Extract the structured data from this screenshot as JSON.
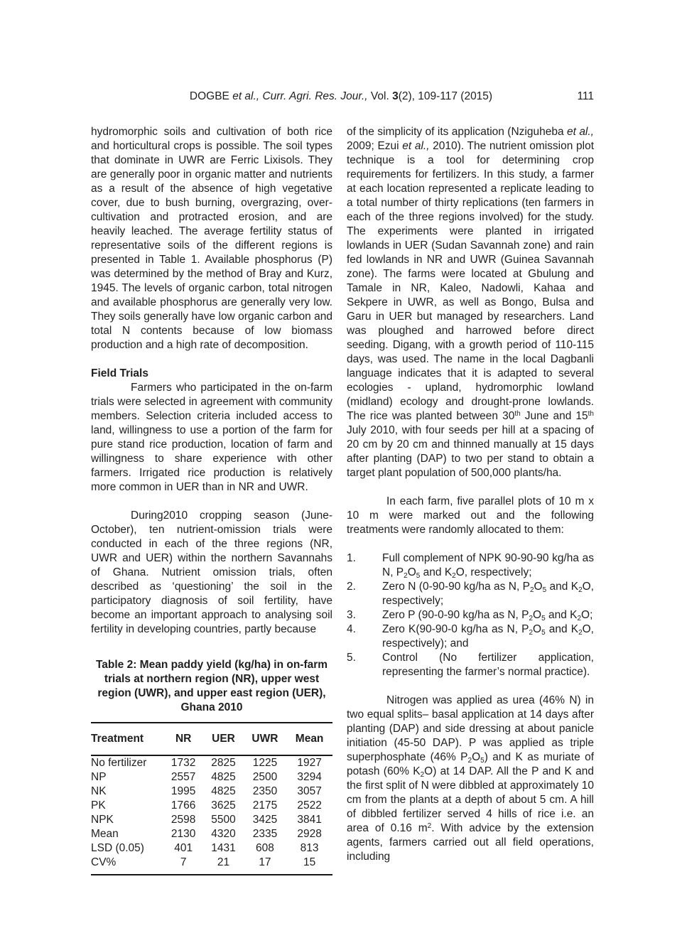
{
  "header": {
    "citation": [
      {
        "t": "DOGBE "
      },
      {
        "t": "et al.,",
        "s": "i"
      },
      {
        "t": " "
      },
      {
        "t": "Curr. Agri. Res. Jour.,",
        "s": "i"
      },
      {
        "t": " Vol. "
      },
      {
        "t": "3",
        "s": "b"
      },
      {
        "t": "(2), 109-117 (2015)"
      }
    ],
    "page_number": "111"
  },
  "left_column": {
    "p1": "hydromorphic soils and cultivation of both rice and horticultural crops is possible. The soil types that dominate in UWR are Ferric Lixisols. They are generally poor in organic matter and nutrients as a result of the absence of high vegetative cover, due to bush burning, overgrazing, over-cultivation and protracted erosion, and are heavily leached. The average fertility status of representative soils of the different regions is presented in Table 1. Available phosphorus (P) was determined by the method of Bray and Kurz, 1945. The levels of organic carbon, total nitrogen and available phosphorus are generally very low. They soils generally have low organic carbon and total N contents because of low biomass production and a high rate of decomposition.",
    "section_heading": "Field Trials",
    "p2": "Farmers who participated in the on-farm trials were selected in agreement with community members. Selection criteria included access to land, willingness to use a portion of the farm for pure stand rice production, location of farm and willingness to share experience with other farmers. Irrigated rice production is relatively more common in UER than in NR and UWR.",
    "p3": "During2010 cropping season (June-October), ten nutrient-omission trials were conducted in each of the three regions (NR, UWR and UER) within the northern Savannahs of Ghana. Nutrient omission trials, often described as ‘questioning’ the soil in the participatory diagnosis of soil fertility, have become an important approach to analysing soil fertility in developing countries, partly because"
  },
  "table": {
    "caption": "Table 2: Mean paddy yield (kg/ha) in on-farm trials at northern region (NR), upper west region (UWR), and upper east region (UER), Ghana 2010",
    "headers": [
      "Treatment",
      "NR",
      "UER",
      "UWR",
      "Mean"
    ],
    "rows": [
      [
        "No fertilizer",
        "1732",
        "2825",
        "1225",
        "1927"
      ],
      [
        "NP",
        "2557",
        "4825",
        "2500",
        "3294"
      ],
      [
        "NK",
        "1995",
        "4825",
        "2350",
        "3057"
      ],
      [
        "PK",
        "1766",
        "3625",
        "2175",
        "2522"
      ],
      [
        "NPK",
        "2598",
        "5500",
        "3425",
        "3841"
      ],
      [
        "Mean",
        "2130",
        "4320",
        "2335",
        "2928"
      ],
      [
        "LSD (0.05)",
        "401",
        "1431",
        "608",
        "813"
      ],
      [
        "CV%",
        "7",
        "21",
        "17",
        "15"
      ]
    ]
  },
  "right_column": {
    "p1": [
      {
        "t": "of the simplicity of its application (Nziguheba "
      },
      {
        "t": "et al.,",
        "s": "i"
      },
      {
        "t": " 2009; Ezui "
      },
      {
        "t": "et al.,",
        "s": "i"
      },
      {
        "t": " 2010). The nutrient omission plot technique is a tool for determining crop requirements for fertilizers. In this study, a farmer at each location represented a replicate leading to a total number of thirty replications (ten farmers in each of the three regions involved) for the study. The experiments were planted in irrigated lowlands in UER (Sudan Savannah zone) and rain fed lowlands in NR and UWR (Guinea Savannah zone). The farms were located at Gbulung and Tamale in NR, Kaleo, Nadowli, Kahaa and Sekpere in UWR, as well as Bongo, Bulsa and Garu in UER but managed by researchers. Land was ploughed and harrowed before direct seeding. Digang, with a growth period of 110-115 days, was used. The name in the local Dagbanli language indicates that it is adapted to several ecologies - upland, hydromorphic lowland (midland) ecology and drought-prone lowlands. The rice was planted between 30"
      },
      {
        "t": "th",
        "s": "sup"
      },
      {
        "t": " June and 15"
      },
      {
        "t": "th",
        "s": "sup"
      },
      {
        "t": " July 2010, with four seeds per hill at a spacing of 20 cm by 20 cm and thinned manually at 15 days after planting (DAP) to two per stand to obtain a target plant population of 500,000 plants/ha."
      }
    ],
    "p2": "In each farm, five parallel plots of 10 m x 10 m were marked out and the following treatments were randomly allocated to them:",
    "list": [
      {
        "n": "1.",
        "segs": [
          {
            "t": "Full complement of NPK 90-90-90 kg/ha as N, P"
          },
          {
            "t": "2",
            "s": "sub"
          },
          {
            "t": "O"
          },
          {
            "t": "5",
            "s": "sub"
          },
          {
            "t": " and K"
          },
          {
            "t": "2",
            "s": "sub"
          },
          {
            "t": "O, respectively;"
          }
        ]
      },
      {
        "n": "2.",
        "segs": [
          {
            "t": "Zero N (0-90-90 kg/ha as N, P"
          },
          {
            "t": "2",
            "s": "sub"
          },
          {
            "t": "O"
          },
          {
            "t": "5",
            "s": "sub"
          },
          {
            "t": " and K"
          },
          {
            "t": "2",
            "s": "sub"
          },
          {
            "t": "O, respectively;"
          }
        ]
      },
      {
        "n": "3.",
        "segs": [
          {
            "t": "Zero P (90-0-90 kg/ha as N, P"
          },
          {
            "t": "2",
            "s": "sub"
          },
          {
            "t": "O"
          },
          {
            "t": "5",
            "s": "sub"
          },
          {
            "t": " and K"
          },
          {
            "t": "2",
            "s": "sub"
          },
          {
            "t": "O;"
          }
        ]
      },
      {
        "n": "4.",
        "segs": [
          {
            "t": "Zero K(90-90-0 kg/ha as N, P"
          },
          {
            "t": "2",
            "s": "sub"
          },
          {
            "t": "O"
          },
          {
            "t": "5",
            "s": "sub"
          },
          {
            "t": " and K"
          },
          {
            "t": "2",
            "s": "sub"
          },
          {
            "t": "O, respectively); and"
          }
        ]
      },
      {
        "n": "5.",
        "segs": [
          {
            "t": "Control (No fertilizer application, representing the farmer’s normal practice)."
          }
        ]
      }
    ],
    "p3": [
      {
        "t": "Nitrogen was applied as urea (46% N) in two equal splits– basal application at 14 days after planting (DAP) and side dressing at about panicle initiation (45-50 DAP). P was applied as triple superphosphate (46% P"
      },
      {
        "t": "2",
        "s": "sub"
      },
      {
        "t": "O"
      },
      {
        "t": "5",
        "s": "sub"
      },
      {
        "t": ") and K as muriate of potash (60% K"
      },
      {
        "t": "2",
        "s": "sub"
      },
      {
        "t": "O) at 14 DAP. All the P and K and the first split of N were dibbled at approximately 10 cm from the plants at a depth of about 5 cm. A hill of dibbled fertilizer served 4 hills of rice i.e. an area of 0.16 m"
      },
      {
        "t": "2",
        "s": "sup"
      },
      {
        "t": ". With advice by the extension agents, farmers carried out all field operations, including"
      }
    ]
  }
}
